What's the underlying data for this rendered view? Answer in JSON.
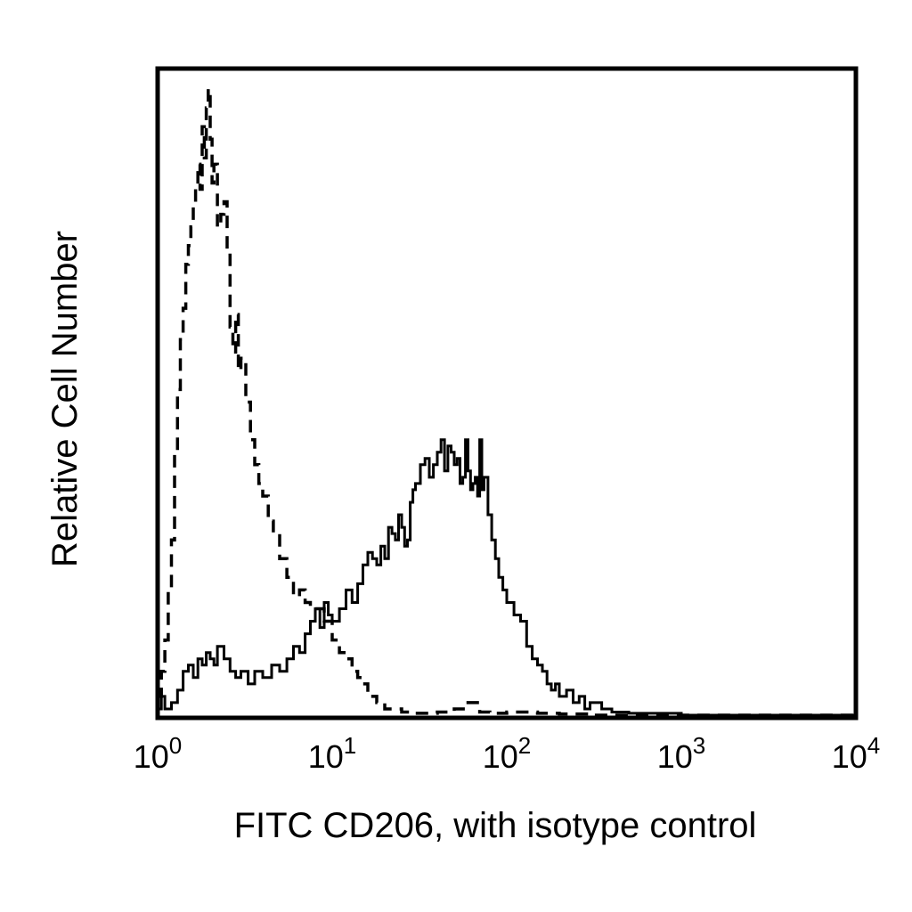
{
  "chart_data": {
    "type": "line",
    "xlabel": "FITC CD206, with isotype control",
    "ylabel": "Relative Cell Number",
    "x_scale": "log",
    "xlim": [
      1,
      10000
    ],
    "ylim": [
      0,
      100
    ],
    "grid": false,
    "legend": "none",
    "x_ticks": [
      {
        "value": 1,
        "base": "10",
        "exp": "0"
      },
      {
        "value": 10,
        "base": "10",
        "exp": "1"
      },
      {
        "value": 100,
        "base": "10",
        "exp": "2"
      },
      {
        "value": 1000,
        "base": "10",
        "exp": "3"
      },
      {
        "value": 10000,
        "base": "10",
        "exp": "4"
      }
    ],
    "series": [
      {
        "style": "solid",
        "color": "#000000",
        "x": [
          1.0,
          1.05,
          1.1,
          1.2,
          1.3,
          1.4,
          1.5,
          1.6,
          1.7,
          1.8,
          1.9,
          2.0,
          2.1,
          2.2,
          2.4,
          2.6,
          2.8,
          3.0,
          3.3,
          3.6,
          4.0,
          4.5,
          5.0,
          5.5,
          6.0,
          6.5,
          7.0,
          7.5,
          8.0,
          8.5,
          9.0,
          9.5,
          10,
          11,
          12,
          13,
          14,
          15,
          16,
          17,
          18,
          19,
          20,
          21,
          22,
          23,
          24,
          25,
          26,
          27,
          28,
          29,
          30,
          32,
          34,
          36,
          38,
          40,
          42,
          44,
          46,
          48,
          50,
          52,
          54,
          56,
          58,
          60,
          62,
          64,
          66,
          68,
          70,
          72,
          74,
          78,
          82,
          86,
          90,
          95,
          100,
          110,
          120,
          130,
          140,
          150,
          160,
          170,
          180,
          190,
          200,
          220,
          240,
          260,
          280,
          300,
          350,
          400,
          500,
          1000,
          10000
        ],
        "values": [
          1,
          3,
          1,
          2,
          4,
          7,
          8,
          6,
          9,
          8,
          10,
          9,
          8,
          11,
          9,
          7,
          6,
          7,
          5,
          7,
          6,
          8,
          7,
          9,
          11,
          10,
          13,
          15,
          17,
          14,
          18,
          16,
          15,
          17,
          20,
          18,
          21,
          24,
          26,
          25,
          24,
          27,
          25,
          30,
          29,
          28,
          32,
          30,
          27,
          28,
          34,
          36,
          37,
          40,
          41,
          38,
          40,
          42,
          44,
          39,
          43,
          42,
          40,
          41,
          37,
          38,
          44,
          39,
          36,
          37,
          38,
          35,
          44,
          36,
          38,
          32,
          28,
          25,
          22,
          20,
          18,
          16,
          15,
          11,
          9,
          8,
          7,
          5,
          4,
          5,
          3,
          4,
          2,
          3,
          1,
          2,
          1,
          0.5,
          0.3,
          0,
          0
        ]
      },
      {
        "style": "dashed",
        "color": "#000000",
        "x": [
          1.0,
          1.05,
          1.1,
          1.15,
          1.2,
          1.25,
          1.3,
          1.35,
          1.4,
          1.45,
          1.5,
          1.55,
          1.6,
          1.65,
          1.7,
          1.75,
          1.8,
          1.85,
          1.9,
          1.95,
          2.0,
          2.05,
          2.1,
          2.2,
          2.3,
          2.4,
          2.5,
          2.6,
          2.7,
          2.8,
          2.9,
          3.0,
          3.2,
          3.4,
          3.6,
          3.8,
          4.0,
          4.3,
          4.6,
          5.0,
          5.5,
          6.0,
          6.5,
          7.0,
          7.5,
          8.0,
          9.0,
          10,
          11,
          12,
          13,
          14,
          15,
          16,
          18,
          20,
          25,
          30,
          40,
          50,
          60,
          70,
          80,
          100,
          150,
          200,
          300,
          1000,
          10000
        ],
        "values": [
          3,
          7,
          12,
          20,
          28,
          42,
          52,
          60,
          65,
          72,
          75,
          78,
          82,
          84,
          88,
          84,
          94,
          89,
          97,
          100,
          92,
          85,
          88,
          78,
          80,
          82,
          74,
          62,
          58,
          64,
          55,
          57,
          50,
          44,
          40,
          37,
          35,
          31,
          29,
          25,
          22,
          19,
          20,
          18,
          17,
          17,
          15,
          12,
          10,
          9,
          7,
          6,
          5,
          3,
          2,
          1,
          0.5,
          0.3,
          0.5,
          1,
          2,
          0.5,
          0.3,
          0.5,
          0.3,
          0.2,
          0,
          0,
          0
        ]
      }
    ]
  }
}
